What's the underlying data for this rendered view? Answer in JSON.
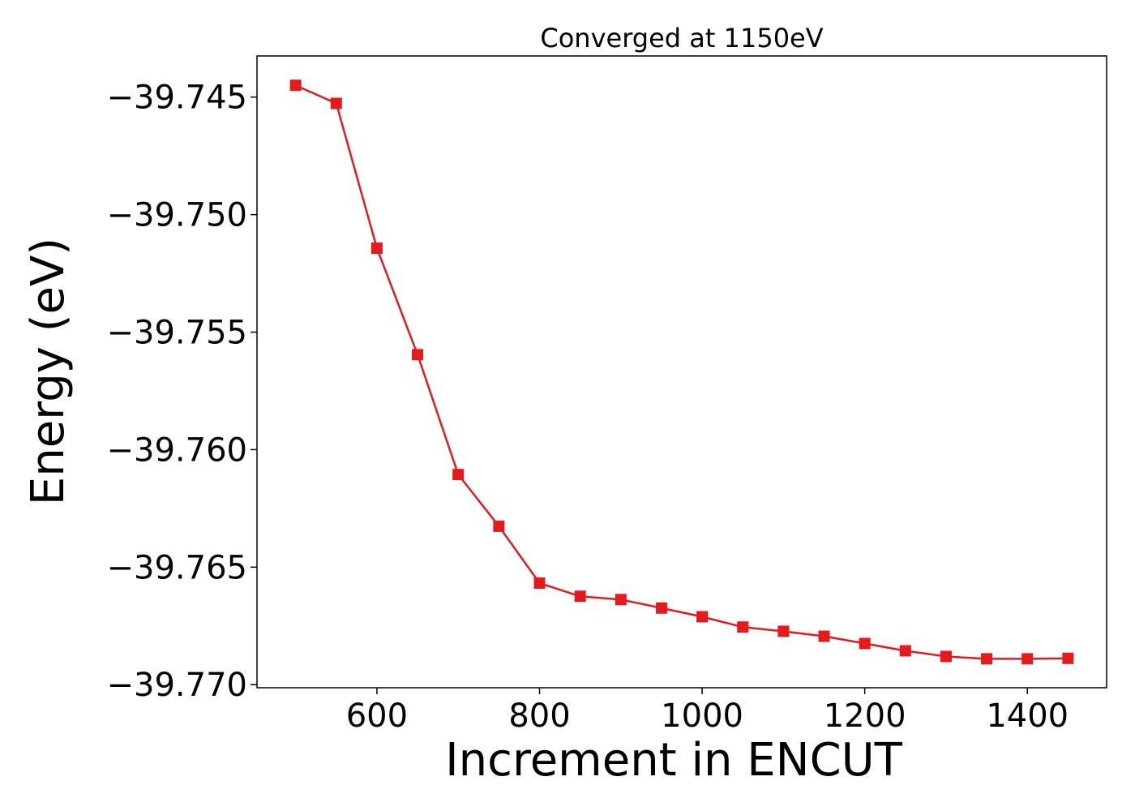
{
  "chart_data": {
    "type": "line",
    "title": "Converged at 1150eV",
    "xlabel": "Increment in ENCUT",
    "ylabel": "Energy (eV)",
    "xlim": [
      452.5,
      1497.5
    ],
    "ylim": [
      -39.77013,
      -39.74325
    ],
    "xticks": [
      600,
      800,
      1000,
      1200,
      1400
    ],
    "xtick_labels": [
      "600",
      "800",
      "1000",
      "1200",
      "1400"
    ],
    "yticks": [
      -39.745,
      -39.75,
      -39.755,
      -39.76,
      -39.765,
      -39.77
    ],
    "ytick_labels": [
      "−39.745",
      "−39.750",
      "−39.755",
      "−39.760",
      "−39.765",
      "−39.770"
    ],
    "grid": false,
    "series": [
      {
        "color": "#e41a1c",
        "marker": "square",
        "x": [
          500,
          550,
          600,
          650,
          700,
          750,
          800,
          850,
          900,
          950,
          1000,
          1050,
          1100,
          1150,
          1200,
          1250,
          1300,
          1350,
          1400,
          1450
        ],
        "y": [
          -39.7445,
          -39.74527,
          -39.75143,
          -39.75596,
          -39.76106,
          -39.76326,
          -39.76568,
          -39.76624,
          -39.76638,
          -39.76674,
          -39.76711,
          -39.76755,
          -39.76773,
          -39.76794,
          -39.76825,
          -39.76856,
          -39.7688,
          -39.7689,
          -39.7689,
          -39.76888
        ]
      }
    ]
  }
}
